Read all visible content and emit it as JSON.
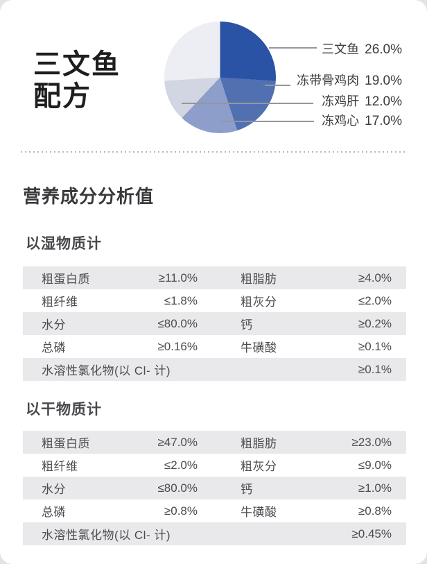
{
  "product": {
    "title_line1": "三文鱼",
    "title_line2": "配方"
  },
  "chart_data": {
    "type": "pie",
    "title": "三文鱼配方 配料占比",
    "legend_position": "right",
    "slices": [
      {
        "label": "三文鱼",
        "value": 26.0,
        "display": "26.0%",
        "color": "#2a53a5"
      },
      {
        "label": "冻带骨鸡肉",
        "value": 19.0,
        "display": "19.0%",
        "color": "#5170b2"
      },
      {
        "label": "冻鸡心",
        "value": 17.0,
        "display": "17.0%",
        "color": "#8d9ecb"
      },
      {
        "label": "冻鸡肝",
        "value": 12.0,
        "display": "12.0%",
        "color": "#d2d5e2"
      },
      {
        "label": "",
        "value": 26.0,
        "display": "",
        "color": "#edeef3"
      }
    ]
  },
  "analysis": {
    "heading": "营养成分分析值",
    "tables": [
      {
        "title": "以湿物质计",
        "rows": [
          [
            {
              "label": "粗蛋白质",
              "value": "≥11.0%"
            },
            {
              "label": "粗脂肪",
              "value": "≥4.0%"
            }
          ],
          [
            {
              "label": "粗纤维",
              "value": "≤1.8%"
            },
            {
              "label": "粗灰分",
              "value": "≤2.0%"
            }
          ],
          [
            {
              "label": "水分",
              "value": "≤80.0%"
            },
            {
              "label": "钙",
              "value": "≥0.2%"
            }
          ],
          [
            {
              "label": "总磷",
              "value": "≥0.16%"
            },
            {
              "label": "牛磺酸",
              "value": "≥0.1%"
            }
          ]
        ],
        "full_row": {
          "label": "水溶性氯化物(以 Cl- 计)",
          "value": "≥0.1%"
        }
      },
      {
        "title": "以干物质计",
        "rows": [
          [
            {
              "label": "粗蛋白质",
              "value": "≥47.0%"
            },
            {
              "label": "粗脂肪",
              "value": "≥23.0%"
            }
          ],
          [
            {
              "label": "粗纤维",
              "value": "≤2.0%"
            },
            {
              "label": "粗灰分",
              "value": "≤9.0%"
            }
          ],
          [
            {
              "label": "水分",
              "value": "≤80.0%"
            },
            {
              "label": "钙",
              "value": "≥1.0%"
            }
          ],
          [
            {
              "label": "总磷",
              "value": "≥0.8%"
            },
            {
              "label": "牛磺酸",
              "value": "≥0.8%"
            }
          ]
        ],
        "full_row": {
          "label": "水溶性氯化物(以 Cl- 计)",
          "value": "≥0.45%"
        }
      }
    ]
  }
}
